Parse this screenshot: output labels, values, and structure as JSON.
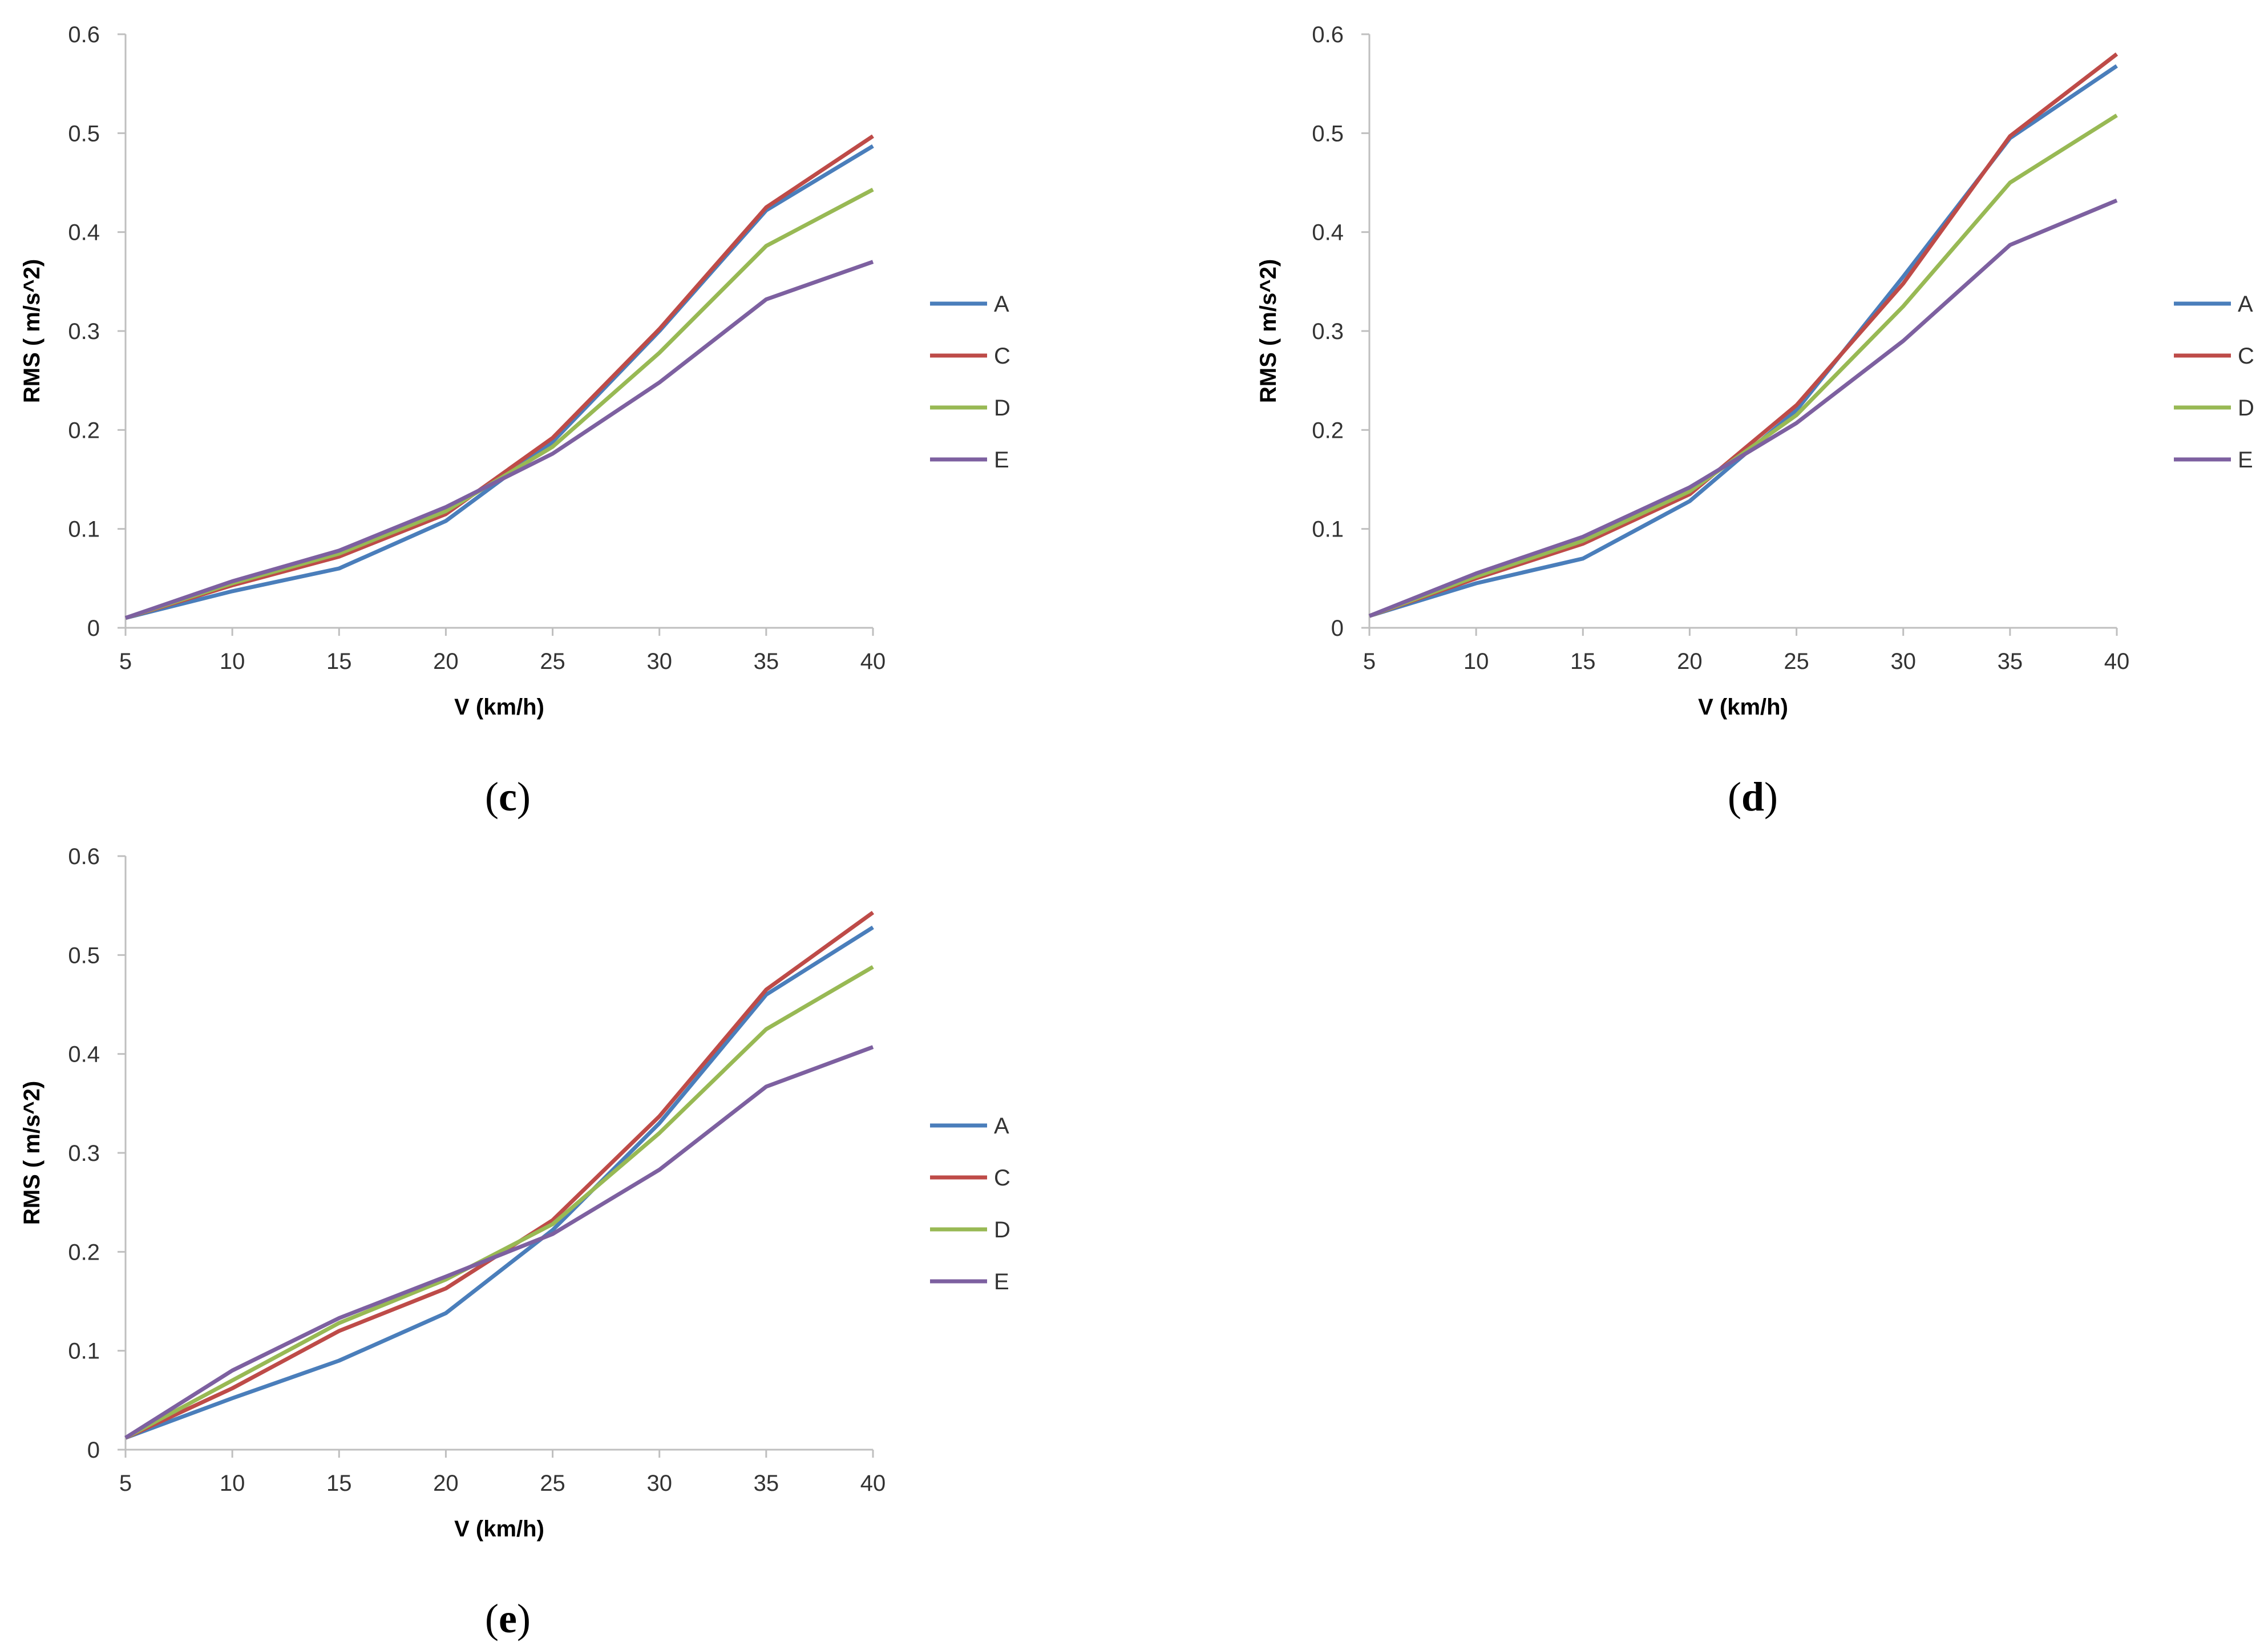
{
  "colors": {
    "A": "#4a7ebb",
    "C": "#be4b48",
    "D": "#98b954",
    "E": "#7d60a0",
    "axis": "#bfbfbf"
  },
  "chart_data": [
    {
      "type": "line",
      "panel": "c",
      "caption": {
        "open": "(",
        "letter": "c",
        "close": ")"
      },
      "x": [
        5,
        10,
        15,
        20,
        25,
        30,
        35,
        40
      ],
      "xlabel": "V (km/h)",
      "ylabel": "RMS ( m/s^2)",
      "ylim": [
        0,
        0.6
      ],
      "yticks": [
        "0",
        "0.1",
        "0.2",
        "0.3",
        "0.4",
        "0.5",
        "0.6"
      ],
      "legend_position": "right",
      "series": [
        {
          "name": "A",
          "values": [
            0.01,
            0.037,
            0.06,
            0.108,
            0.188,
            0.3,
            0.422,
            0.487
          ]
        },
        {
          "name": "C",
          "values": [
            0.01,
            0.043,
            0.072,
            0.115,
            0.192,
            0.302,
            0.425,
            0.497
          ]
        },
        {
          "name": "D",
          "values": [
            0.01,
            0.045,
            0.075,
            0.118,
            0.183,
            0.278,
            0.386,
            0.443
          ]
        },
        {
          "name": "E",
          "values": [
            0.01,
            0.047,
            0.078,
            0.122,
            0.176,
            0.248,
            0.332,
            0.37
          ]
        }
      ]
    },
    {
      "type": "line",
      "panel": "d",
      "caption": {
        "open": "(",
        "letter": "d",
        "close": ")"
      },
      "x": [
        5,
        10,
        15,
        20,
        25,
        30,
        35,
        40
      ],
      "xlabel": "V (km/h)",
      "ylabel": "RMS ( m/s^2)",
      "ylim": [
        0,
        0.6
      ],
      "yticks": [
        "0",
        "0.1",
        "0.2",
        "0.3",
        "0.4",
        "0.5",
        "0.6"
      ],
      "legend_position": "right",
      "series": [
        {
          "name": "A",
          "values": [
            0.012,
            0.045,
            0.07,
            0.128,
            0.22,
            0.355,
            0.495,
            0.568
          ]
        },
        {
          "name": "C",
          "values": [
            0.012,
            0.05,
            0.085,
            0.135,
            0.225,
            0.348,
            0.497,
            0.58
          ]
        },
        {
          "name": "D",
          "values": [
            0.012,
            0.052,
            0.088,
            0.138,
            0.215,
            0.325,
            0.45,
            0.518
          ]
        },
        {
          "name": "E",
          "values": [
            0.012,
            0.055,
            0.092,
            0.142,
            0.207,
            0.29,
            0.387,
            0.432
          ]
        }
      ]
    },
    {
      "type": "line",
      "panel": "e",
      "caption": {
        "open": "(",
        "letter": "e",
        "close": ")"
      },
      "x": [
        5,
        10,
        15,
        20,
        25,
        30,
        35,
        40
      ],
      "xlabel": "V (km/h)",
      "ylabel": "RMS ( m/s^2)",
      "ylim": [
        0,
        0.6
      ],
      "yticks": [
        "0",
        "0.1",
        "0.2",
        "0.3",
        "0.4",
        "0.5",
        "0.6"
      ],
      "legend_position": "right",
      "series": [
        {
          "name": "A",
          "values": [
            0.012,
            0.052,
            0.09,
            0.138,
            0.222,
            0.33,
            0.46,
            0.528
          ]
        },
        {
          "name": "C",
          "values": [
            0.012,
            0.062,
            0.12,
            0.163,
            0.232,
            0.337,
            0.465,
            0.543
          ]
        },
        {
          "name": "D",
          "values": [
            0.012,
            0.07,
            0.128,
            0.172,
            0.228,
            0.32,
            0.425,
            0.488
          ]
        },
        {
          "name": "E",
          "values": [
            0.012,
            0.08,
            0.133,
            0.175,
            0.218,
            0.283,
            0.367,
            0.407
          ]
        }
      ]
    }
  ]
}
